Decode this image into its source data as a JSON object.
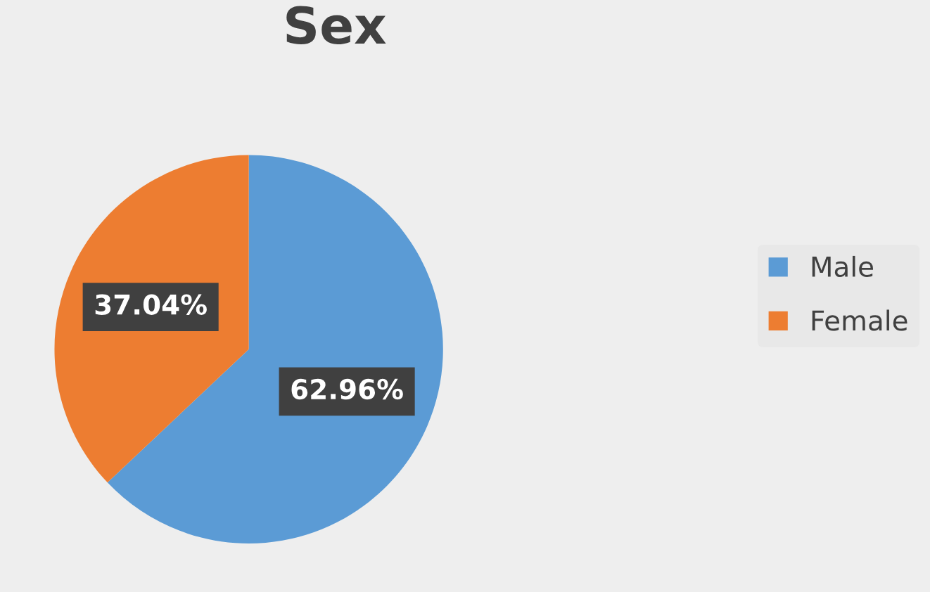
{
  "chart_data": {
    "type": "pie",
    "title": "Sex",
    "categories": [
      "Male",
      "Female"
    ],
    "values": [
      62.96,
      37.04
    ],
    "colors": [
      "#5b9bd5",
      "#ed7d31"
    ],
    "value_labels": [
      "62.96%",
      "37.04%"
    ],
    "legend": "right"
  }
}
